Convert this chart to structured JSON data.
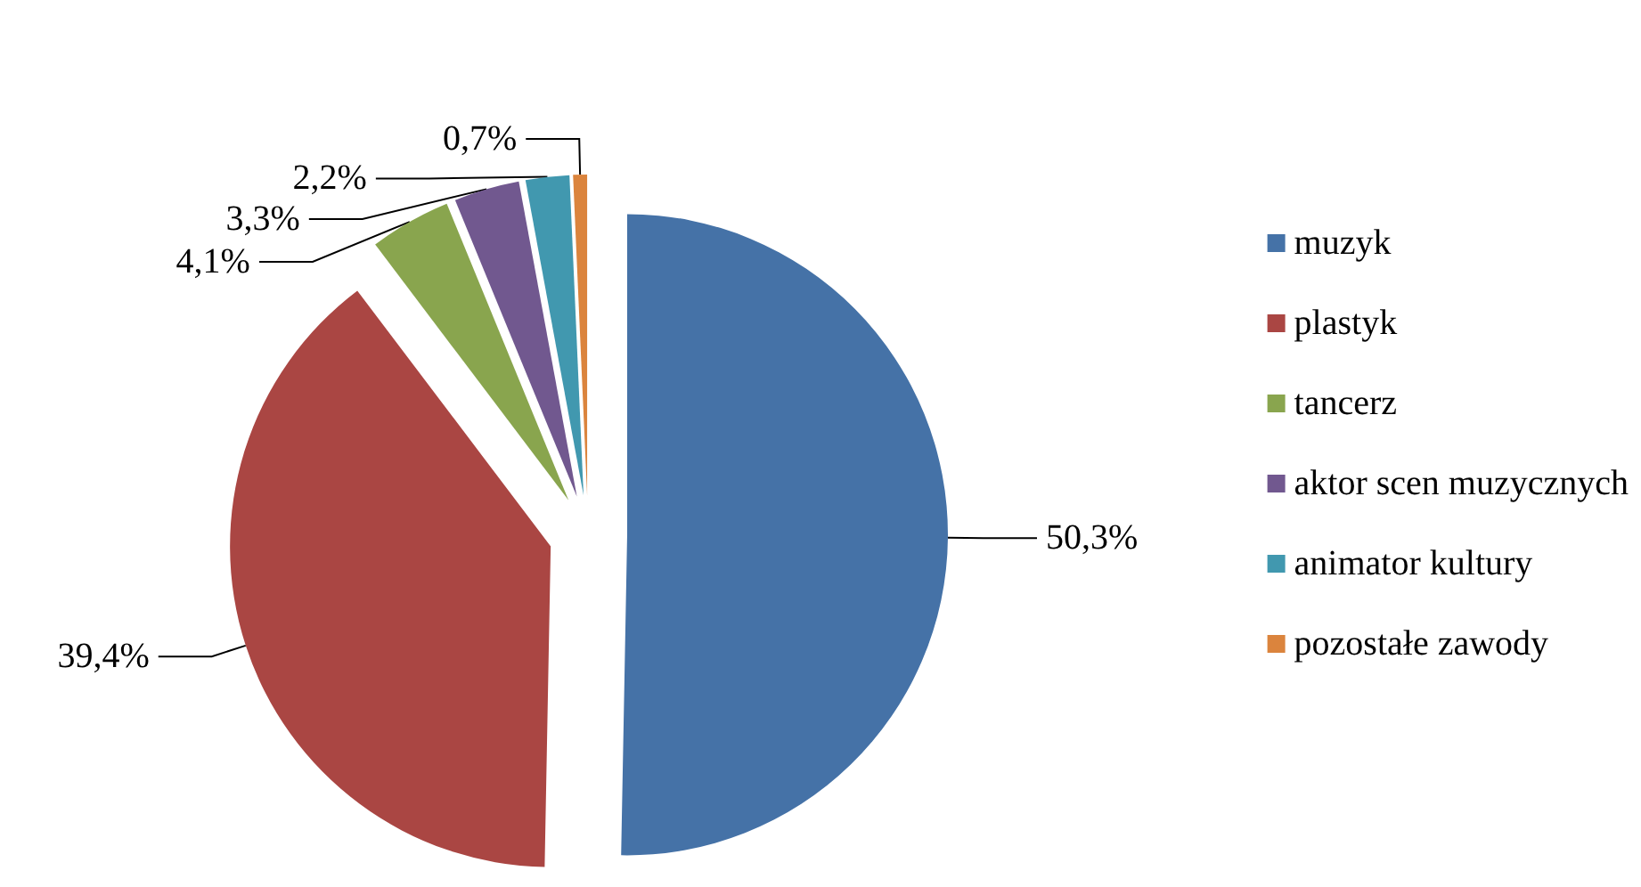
{
  "chart_data": {
    "type": "pie",
    "categories": [
      "muzyk",
      "plastyk",
      "tancerz",
      "aktor scen muzycznych",
      "animator kultury",
      "pozostałe zawody"
    ],
    "values": [
      50.3,
      39.4,
      4.1,
      3.3,
      2.2,
      0.7
    ],
    "colors": [
      "#4572a7",
      "#aa4643",
      "#89a54e",
      "#71588f",
      "#4198af",
      "#db843d"
    ],
    "value_labels": [
      "50,3%",
      "39,4%",
      "4,1%",
      "3,3%",
      "2,2%",
      "0,7%"
    ],
    "legend": "right"
  }
}
